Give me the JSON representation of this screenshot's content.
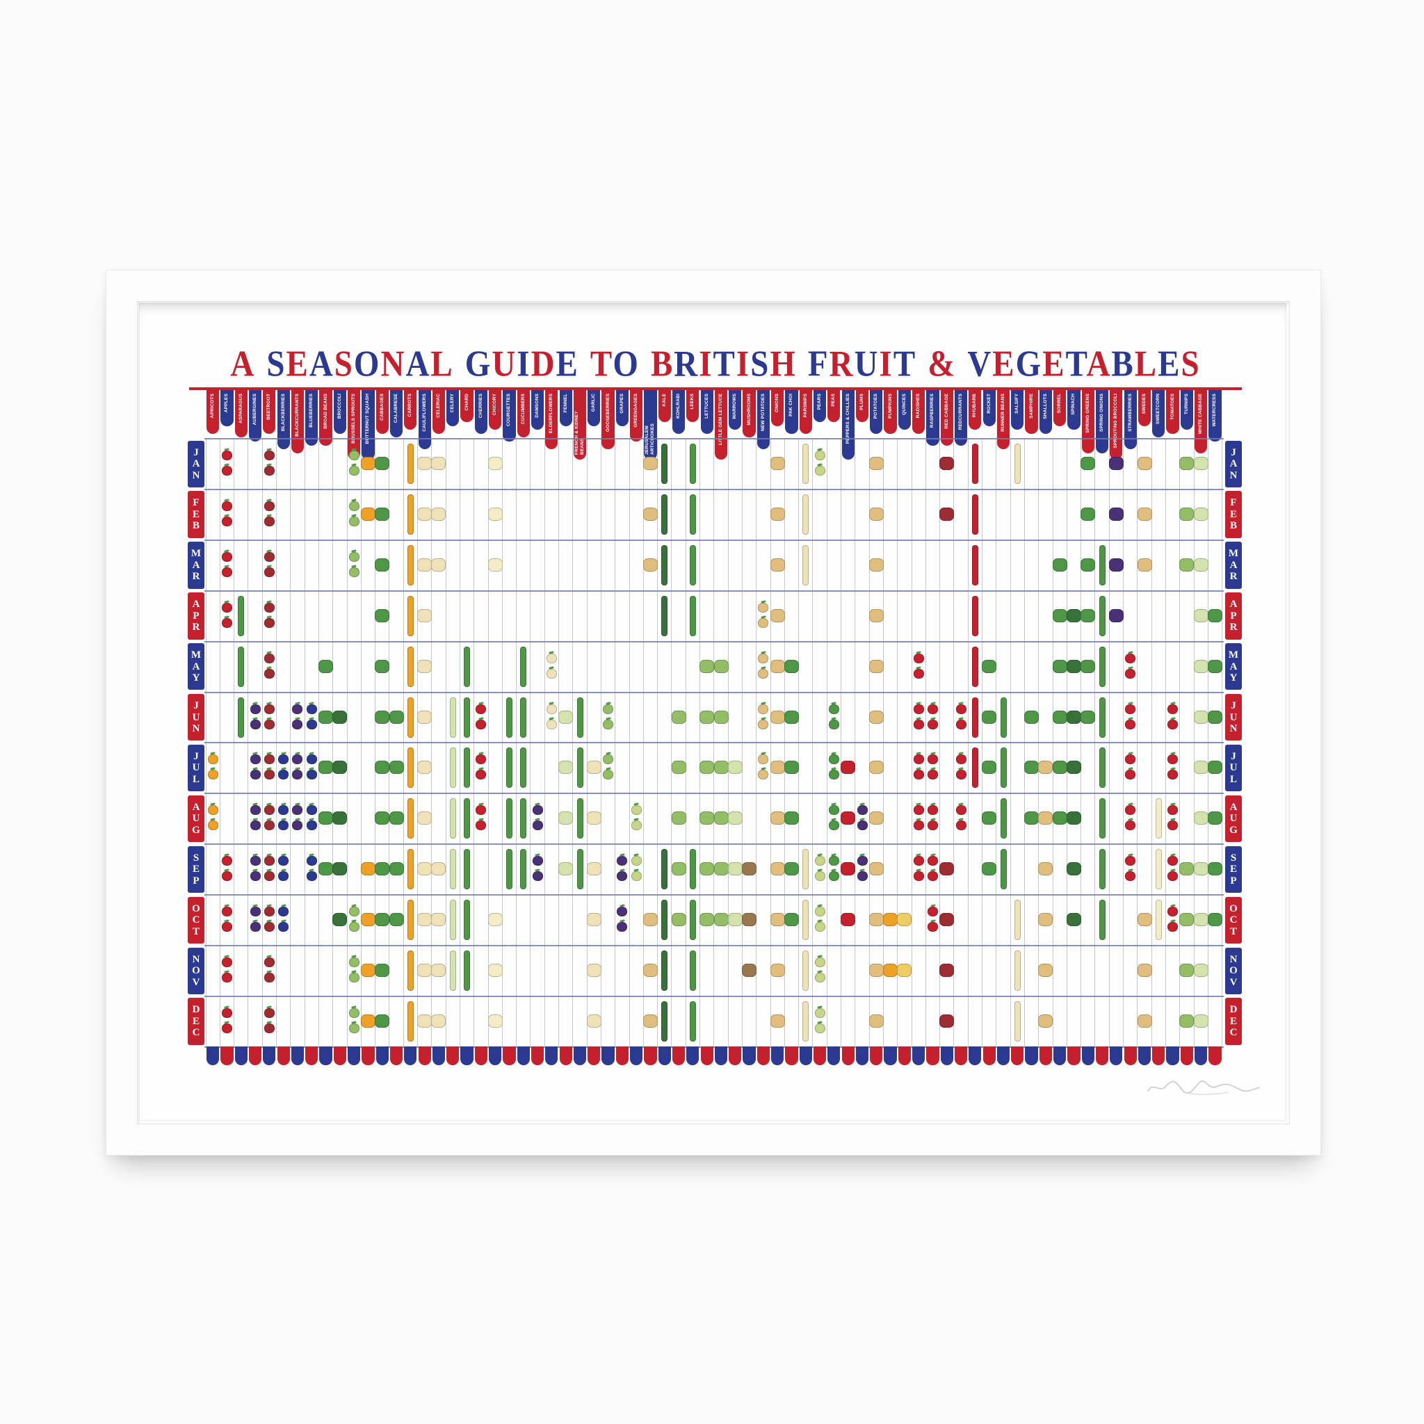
{
  "chart_data": {
    "type": "heatmap",
    "title": "A SEASONAL GUIDE TO BRITISH FRUIT & VEGETABLES",
    "subtitle": "",
    "row_labels": [
      "JAN",
      "FEB",
      "MAR",
      "APR",
      "MAY",
      "JUN",
      "JUL",
      "AUG",
      "SEP",
      "OCT",
      "NOV",
      "DEC"
    ],
    "legend_position": "none",
    "grid": true,
    "title_letter_colors": [
      "#c5202e",
      "#2b3990"
    ],
    "ribbon_colors_alternate": [
      "#c5202e",
      "#2b3990"
    ],
    "scallop_colors_alternate": [
      "#2b3990",
      "#c5202e"
    ],
    "month_box_colors_alternate": [
      "#2b3990",
      "#c5202e"
    ],
    "gridline_vertical_color": "#c3c7d3",
    "gridline_horizontal_color": "#737cb2",
    "palette": {
      "red": "#c5202e",
      "darkRed": "#9d2c33",
      "orange": "#eda127",
      "navy": "#2b3990",
      "plum": "#4a3177",
      "green": "#4d9747",
      "darkGreen": "#39713b",
      "lightGreen": "#93be66",
      "paleGreen": "#d4e2ae",
      "cream": "#efe2b8",
      "tan": "#dfbe7e",
      "brown": "#97784f",
      "yellow": "#eecd62",
      "paleYellow": "#f4ecc6",
      "yellowGreen": "#c8d489"
    },
    "columns": [
      {
        "name": "APRICOTS",
        "color": "orange",
        "shape": "dot",
        "months": [
          7,
          8
        ]
      },
      {
        "name": "APPLES",
        "color": "red",
        "shape": "dot",
        "months": [
          1,
          2,
          3,
          4,
          9,
          10,
          11,
          12
        ]
      },
      {
        "name": "ASPARAGUS",
        "color": "green",
        "shape": "tall",
        "months": [
          4,
          5,
          6
        ]
      },
      {
        "name": "AUBERGINES",
        "color": "plum",
        "shape": "dot",
        "months": [
          6,
          7,
          8,
          9,
          10
        ]
      },
      {
        "name": "BEETROOT",
        "color": "darkRed",
        "shape": "dot",
        "months": [
          1,
          2,
          3,
          4,
          5,
          6,
          7,
          8,
          9,
          10,
          11,
          12
        ]
      },
      {
        "name": "BLACKBERRIES",
        "color": "navy",
        "shape": "dot",
        "months": [
          7,
          8,
          9,
          10
        ]
      },
      {
        "name": "BLACKCURRANTS",
        "color": "plum",
        "shape": "dot",
        "months": [
          6,
          7,
          8
        ]
      },
      {
        "name": "BLUEBERRIES",
        "color": "navy",
        "shape": "dot",
        "months": [
          6,
          7,
          8,
          9
        ]
      },
      {
        "name": "BROAD BEANS",
        "color": "green",
        "shape": "mid",
        "months": [
          5,
          6,
          7,
          8,
          9
        ]
      },
      {
        "name": "BROCCOLI",
        "color": "darkGreen",
        "shape": "mid",
        "months": [
          6,
          7,
          8,
          9,
          10
        ]
      },
      {
        "name": "BRUSSELS SPROUTS",
        "color": "lightGreen",
        "shape": "dot",
        "months": [
          1,
          2,
          3,
          10,
          11,
          12
        ]
      },
      {
        "name": "BUTTERNUT SQUASH",
        "color": "orange",
        "shape": "mid",
        "months": [
          1,
          2,
          9,
          10,
          11,
          12
        ]
      },
      {
        "name": "CABBAGES",
        "color": "green",
        "shape": "mid",
        "months": [
          1,
          2,
          3,
          4,
          5,
          6,
          7,
          8,
          9,
          10,
          11,
          12
        ]
      },
      {
        "name": "CALABRESE",
        "color": "green",
        "shape": "mid",
        "months": [
          6,
          7,
          8,
          9,
          10
        ]
      },
      {
        "name": "CARROTS",
        "color": "orange",
        "shape": "tall",
        "months": [
          1,
          2,
          3,
          4,
          5,
          6,
          7,
          8,
          9,
          10,
          11,
          12
        ]
      },
      {
        "name": "CAULIFLOWERS",
        "color": "cream",
        "shape": "mid",
        "months": [
          1,
          2,
          3,
          4,
          5,
          6,
          7,
          8,
          9,
          10,
          11,
          12
        ]
      },
      {
        "name": "CELERIAC",
        "color": "cream",
        "shape": "mid",
        "months": [
          1,
          2,
          3,
          9,
          10,
          11,
          12
        ]
      },
      {
        "name": "CELERY",
        "color": "paleGreen",
        "shape": "tall",
        "months": [
          6,
          7,
          8,
          9,
          10,
          11
        ]
      },
      {
        "name": "CHARD",
        "color": "green",
        "shape": "tall",
        "months": [
          5,
          6,
          7,
          8,
          9,
          10,
          11
        ]
      },
      {
        "name": "CHERRIES",
        "color": "red",
        "shape": "dot",
        "months": [
          6,
          7,
          8
        ]
      },
      {
        "name": "CHICORY",
        "color": "paleYellow",
        "shape": "mid",
        "months": [
          1,
          2,
          3,
          10,
          11,
          12
        ]
      },
      {
        "name": "COURGETTES",
        "color": "green",
        "shape": "tall",
        "months": [
          6,
          7,
          8,
          9
        ]
      },
      {
        "name": "CUCUMBERS",
        "color": "green",
        "shape": "tall",
        "months": [
          5,
          6,
          7,
          8,
          9
        ]
      },
      {
        "name": "DAMSONS",
        "color": "plum",
        "shape": "dot",
        "months": [
          8,
          9
        ]
      },
      {
        "name": "ELDERFLOWERS",
        "color": "cream",
        "shape": "dot",
        "months": [
          5,
          6
        ]
      },
      {
        "name": "FENNEL",
        "color": "paleGreen",
        "shape": "mid",
        "months": [
          6,
          7,
          8,
          9
        ]
      },
      {
        "name": "FRENCH & KIDNEY BEANS",
        "color": "green",
        "shape": "tall",
        "months": [
          6,
          7,
          8,
          9
        ]
      },
      {
        "name": "GARLIC",
        "color": "cream",
        "shape": "mid",
        "months": [
          7,
          8,
          9,
          10,
          11,
          12
        ]
      },
      {
        "name": "GOOSEBERRIES",
        "color": "lightGreen",
        "shape": "dot",
        "months": [
          6,
          7
        ]
      },
      {
        "name": "GRAPES",
        "color": "plum",
        "shape": "dot",
        "months": [
          9,
          10
        ]
      },
      {
        "name": "GREENGAGES",
        "color": "yellowGreen",
        "shape": "dot",
        "months": [
          8,
          9
        ]
      },
      {
        "name": "JERUSALEM ARTICHOKES",
        "color": "tan",
        "shape": "mid",
        "months": [
          1,
          2,
          3,
          10,
          11,
          12
        ]
      },
      {
        "name": "KALE",
        "color": "darkGreen",
        "shape": "tall",
        "months": [
          1,
          2,
          3,
          4,
          9,
          10,
          11,
          12
        ]
      },
      {
        "name": "KOHLRABI",
        "color": "lightGreen",
        "shape": "mid",
        "months": [
          6,
          7,
          8,
          9,
          10
        ]
      },
      {
        "name": "LEEKS",
        "color": "green",
        "shape": "tall",
        "months": [
          1,
          2,
          3,
          4,
          9,
          10,
          11,
          12
        ]
      },
      {
        "name": "LETTUCES",
        "color": "lightGreen",
        "shape": "mid",
        "months": [
          5,
          6,
          7,
          8,
          9,
          10
        ]
      },
      {
        "name": "LITTLE GEM LETTUCE",
        "color": "lightGreen",
        "shape": "mid",
        "months": [
          5,
          6,
          7,
          8,
          9,
          10
        ]
      },
      {
        "name": "MARROWS",
        "color": "paleGreen",
        "shape": "mid",
        "months": [
          7,
          8,
          9,
          10
        ]
      },
      {
        "name": "MUSHROOMS",
        "color": "brown",
        "shape": "mid",
        "months": [
          9,
          10,
          11
        ]
      },
      {
        "name": "NEW POTATOES",
        "color": "tan",
        "shape": "dot",
        "months": [
          4,
          5,
          6,
          7
        ]
      },
      {
        "name": "ONIONS",
        "color": "tan",
        "shape": "mid",
        "months": [
          1,
          2,
          3,
          4,
          5,
          6,
          7,
          8,
          9,
          10,
          11,
          12
        ]
      },
      {
        "name": "PAK CHOI",
        "color": "green",
        "shape": "mid",
        "months": [
          5,
          6,
          7,
          8,
          9,
          10
        ]
      },
      {
        "name": "PARSNIPS",
        "color": "cream",
        "shape": "tall",
        "months": [
          1,
          2,
          3,
          9,
          10,
          11,
          12
        ]
      },
      {
        "name": "PEARS",
        "color": "yellowGreen",
        "shape": "dot",
        "months": [
          1,
          9,
          10,
          11,
          12
        ]
      },
      {
        "name": "PEAS",
        "color": "green",
        "shape": "dot",
        "months": [
          6,
          7,
          8,
          9
        ]
      },
      {
        "name": "PEPPERS & CHILLIES",
        "color": "red",
        "shape": "mid",
        "months": [
          7,
          8,
          9,
          10
        ]
      },
      {
        "name": "PLUMS",
        "color": "plum",
        "shape": "dot",
        "months": [
          8,
          9
        ]
      },
      {
        "name": "POTATOES",
        "color": "tan",
        "shape": "mid",
        "months": [
          1,
          2,
          3,
          4,
          5,
          6,
          7,
          8,
          9,
          10,
          11,
          12
        ]
      },
      {
        "name": "PUMPKINS",
        "color": "orange",
        "shape": "mid",
        "months": [
          10,
          11
        ]
      },
      {
        "name": "QUINCES",
        "color": "yellow",
        "shape": "mid",
        "months": [
          10,
          11
        ]
      },
      {
        "name": "RADISHES",
        "color": "red",
        "shape": "dot",
        "months": [
          5,
          6,
          7,
          8,
          9
        ]
      },
      {
        "name": "RASPBERRIES",
        "color": "red",
        "shape": "dot",
        "months": [
          6,
          7,
          8,
          9,
          10
        ]
      },
      {
        "name": "RED CABBAGE",
        "color": "darkRed",
        "shape": "mid",
        "months": [
          1,
          2,
          9,
          10,
          11,
          12
        ]
      },
      {
        "name": "REDCURRANTS",
        "color": "red",
        "shape": "dot",
        "months": [
          6,
          7,
          8
        ]
      },
      {
        "name": "RHUBARB",
        "color": "red",
        "shape": "tall",
        "months": [
          1,
          2,
          3,
          4,
          5,
          6,
          7
        ]
      },
      {
        "name": "ROCKET",
        "color": "green",
        "shape": "mid",
        "months": [
          5,
          6,
          7,
          8,
          9
        ]
      },
      {
        "name": "RUNNER BEANS",
        "color": "green",
        "shape": "tall",
        "months": [
          6,
          7,
          8,
          9
        ]
      },
      {
        "name": "SALSIFY",
        "color": "cream",
        "shape": "tall",
        "months": [
          1,
          10,
          11,
          12
        ]
      },
      {
        "name": "SAMPHIRE",
        "color": "green",
        "shape": "mid",
        "months": [
          6,
          7,
          8
        ]
      },
      {
        "name": "SHALLOTS",
        "color": "tan",
        "shape": "mid",
        "months": [
          7,
          8,
          9,
          10,
          11,
          12
        ]
      },
      {
        "name": "SORREL",
        "color": "green",
        "shape": "mid",
        "months": [
          3,
          4,
          5,
          6,
          7,
          8
        ]
      },
      {
        "name": "SPINACH",
        "color": "darkGreen",
        "shape": "mid",
        "months": [
          4,
          5,
          6,
          7,
          8,
          9,
          10
        ]
      },
      {
        "name": "SPRING GREENS",
        "color": "green",
        "shape": "mid",
        "months": [
          1,
          2,
          3,
          4,
          5,
          6
        ]
      },
      {
        "name": "SPRING ONIONS",
        "color": "green",
        "shape": "tall",
        "months": [
          3,
          4,
          5,
          6,
          7,
          8,
          9,
          10
        ]
      },
      {
        "name": "SPROUTING BROCCOLI",
        "color": "plum",
        "shape": "mid",
        "months": [
          1,
          2,
          3,
          4
        ]
      },
      {
        "name": "STRAWBERRIES",
        "color": "red",
        "shape": "dot",
        "months": [
          5,
          6,
          7,
          8,
          9
        ]
      },
      {
        "name": "SWEDES",
        "color": "tan",
        "shape": "mid",
        "months": [
          1,
          2,
          3,
          10,
          11,
          12
        ]
      },
      {
        "name": "SWEETCORN",
        "color": "paleYellow",
        "shape": "tall",
        "months": [
          8,
          9,
          10
        ]
      },
      {
        "name": "TOMATOES",
        "color": "red",
        "shape": "dot",
        "months": [
          6,
          7,
          8,
          9,
          10
        ]
      },
      {
        "name": "TURNIPS",
        "color": "lightGreen",
        "shape": "mid",
        "months": [
          1,
          2,
          3,
          9,
          10,
          11,
          12
        ]
      },
      {
        "name": "WHITE CABBAGE",
        "color": "paleGreen",
        "shape": "mid",
        "months": [
          1,
          2,
          3,
          4,
          5,
          6,
          7,
          8,
          9,
          10,
          11,
          12
        ]
      },
      {
        "name": "WATERCRESS",
        "color": "green",
        "shape": "mid",
        "months": [
          4,
          5,
          6,
          7,
          8,
          9,
          10
        ]
      }
    ]
  }
}
